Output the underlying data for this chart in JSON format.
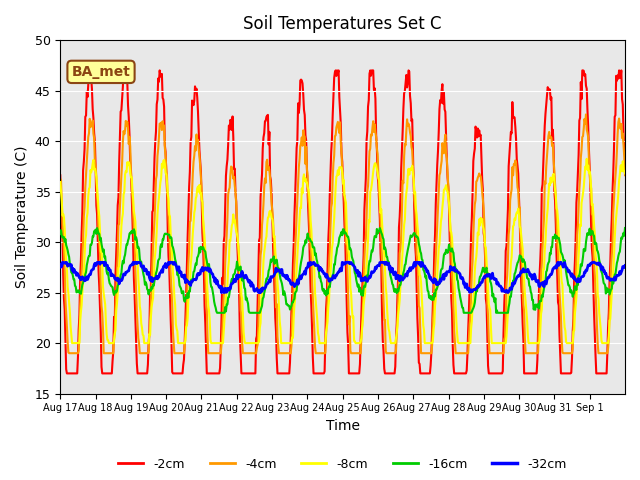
{
  "title": "Soil Temperatures Set C",
  "xlabel": "Time",
  "ylabel": "Soil Temperature (C)",
  "ylim": [
    15,
    50
  ],
  "annotation": "BA_met",
  "bg_color": "#e8e8e8",
  "legend_entries": [
    "-2cm",
    "-4cm",
    "-8cm",
    "-16cm",
    "-32cm"
  ],
  "line_colors": [
    "#ff0000",
    "#ff9900",
    "#ffff00",
    "#00cc00",
    "#0000ff"
  ],
  "line_widths": [
    1.5,
    1.5,
    1.5,
    1.5,
    2.0
  ],
  "x_tick_labels": [
    "Aug 17",
    "Aug 18",
    "Aug 19",
    "Aug 20",
    "Aug 21",
    "Aug 22",
    "Aug 23",
    "Aug 24",
    "Aug 25",
    "Aug 26",
    "Aug 27",
    "Aug 28",
    "Aug 29",
    "Aug 30",
    "Aug 31",
    "Sep 1"
  ],
  "n_points_per_day": 48,
  "n_days": 16
}
